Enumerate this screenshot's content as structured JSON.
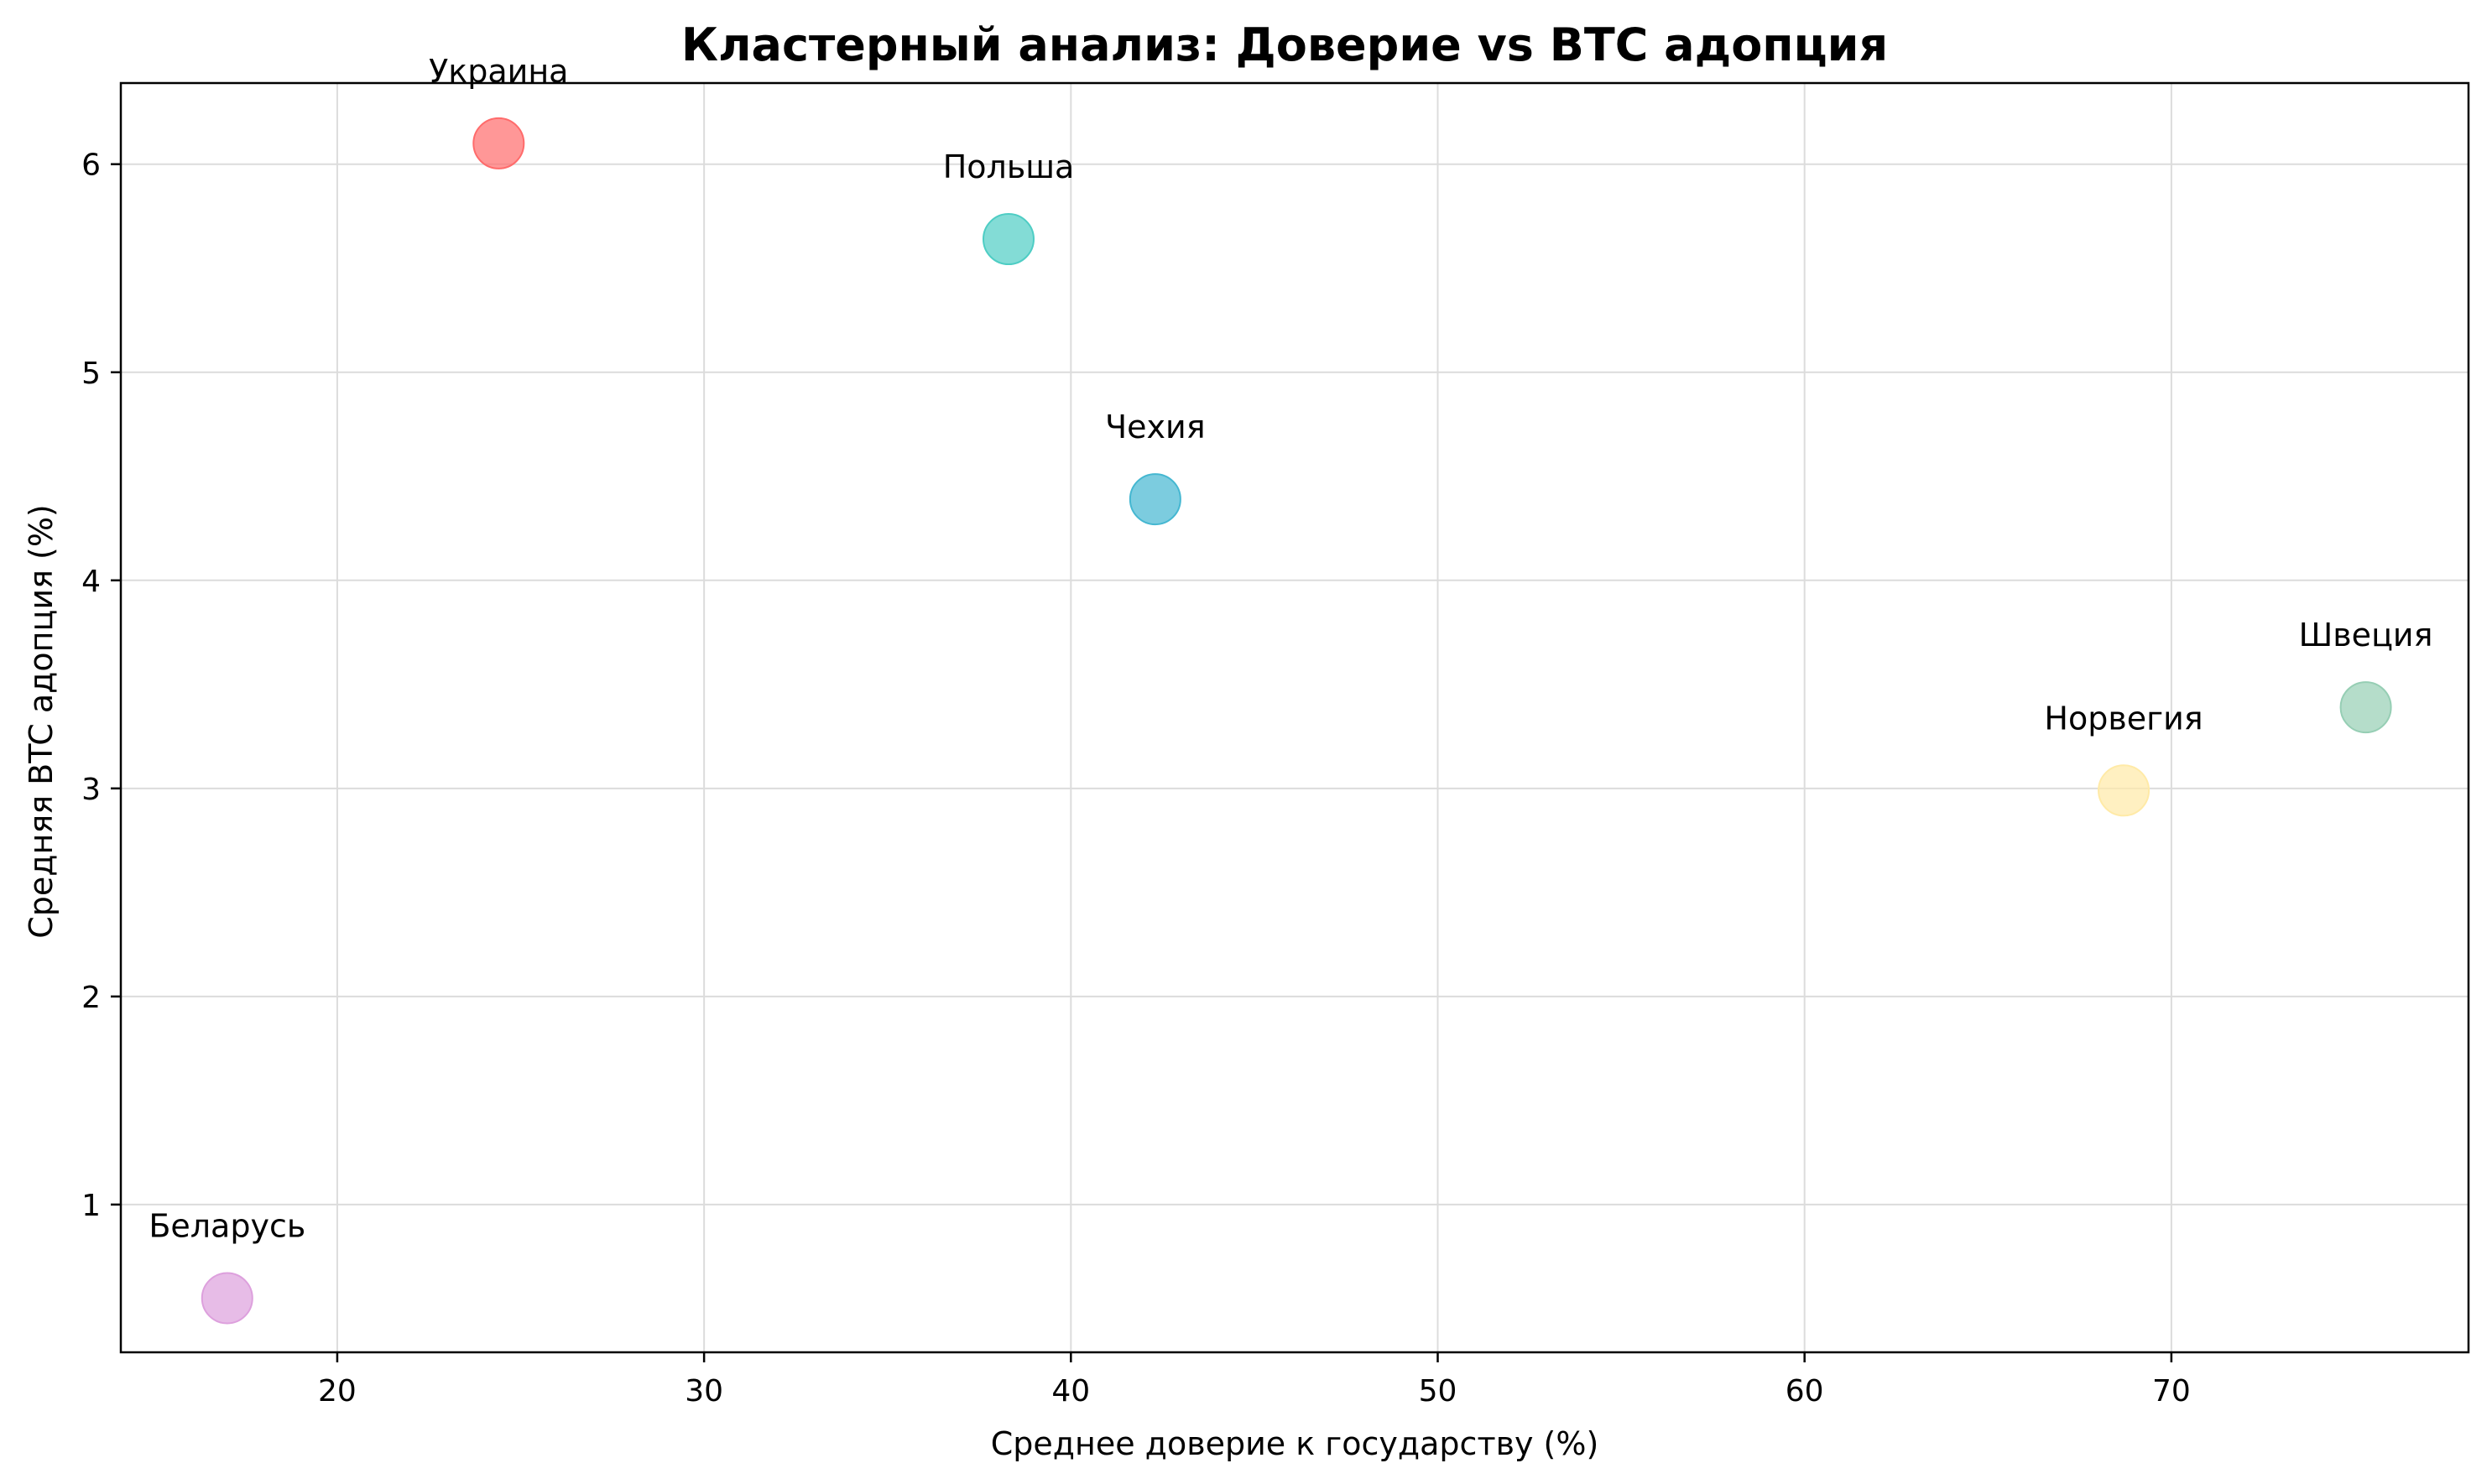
{
  "chart_data": {
    "type": "scatter",
    "title": "Кластерный анализ: Доверие vs BTC адопция",
    "xlabel": "Среднее доверие к государству (%)",
    "ylabel": "Средняя BTC адопция (%)",
    "xlim": [
      14.1,
      78.1
    ],
    "ylim": [
      0.29,
      6.39
    ],
    "xticks": [
      20,
      30,
      40,
      50,
      60,
      70
    ],
    "yticks": [
      1,
      2,
      3,
      4,
      5,
      6
    ],
    "grid": true,
    "points": [
      {
        "label": "Украина",
        "x": 24.4,
        "y": 6.1,
        "color": "#ff6b6b"
      },
      {
        "label": "Польша",
        "x": 38.3,
        "y": 5.64,
        "color": "#4ecdc4"
      },
      {
        "label": "Чехия",
        "x": 42.3,
        "y": 4.39,
        "color": "#45b7d1"
      },
      {
        "label": "Швеция",
        "x": 75.3,
        "y": 3.39,
        "color": "#96ceb4"
      },
      {
        "label": "Норвегия",
        "x": 68.7,
        "y": 2.99,
        "color": "#ffeaa7"
      },
      {
        "label": "Беларусь",
        "x": 17.0,
        "y": 0.55,
        "color": "#dda0dd"
      }
    ]
  }
}
